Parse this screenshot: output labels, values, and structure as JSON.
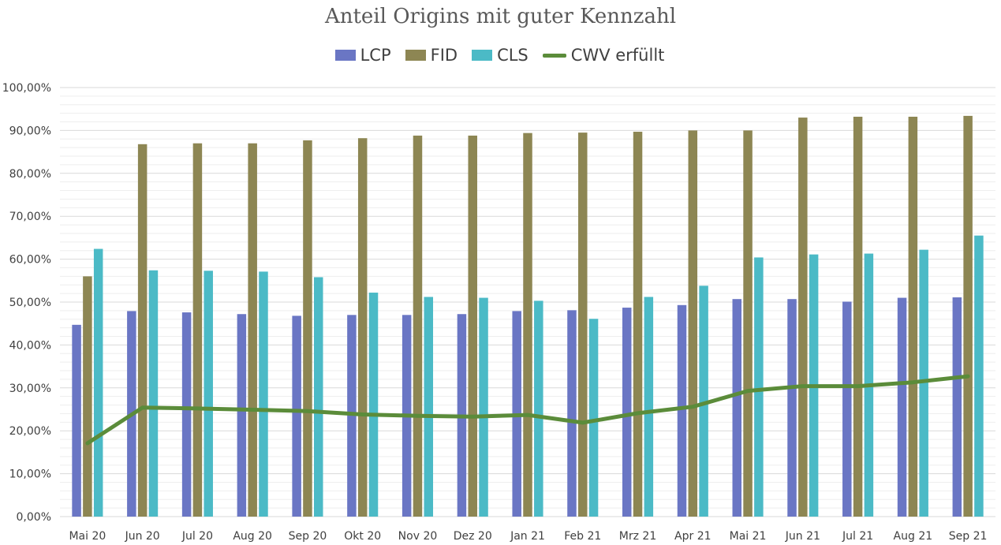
{
  "colors": {
    "LCP": "#6a76c4",
    "FID": "#8d8653",
    "CLS": "#4bbac6",
    "CWV": "#5b8c3a",
    "grid_major": "#d9d9d9",
    "grid_minor": "#eeeeee"
  },
  "chart_data": {
    "type": "bar",
    "title": "Anteil Origins mit guter Kennzahl",
    "xlabel": "",
    "ylabel": "",
    "ylim": [
      0,
      100
    ],
    "y_ticks": [
      "0,00%",
      "10,00%",
      "20,00%",
      "30,00%",
      "40,00%",
      "50,00%",
      "60,00%",
      "70,00%",
      "80,00%",
      "90,00%",
      "100,00%"
    ],
    "grid": true,
    "legend_position": "top",
    "categories": [
      "Mai 20",
      "Jun 20",
      "Jul 20",
      "Aug 20",
      "Sep 20",
      "Okt 20",
      "Nov 20",
      "Dez 20",
      "Jan 21",
      "Feb 21",
      "Mrz 21",
      "Apr 21",
      "Mai 21",
      "Jun 21",
      "Jul 21",
      "Aug 21",
      "Sep 21"
    ],
    "series": [
      {
        "name": "LCP",
        "kind": "bar",
        "values": [
          44.7,
          47.9,
          47.6,
          47.2,
          46.8,
          47.0,
          47.0,
          47.2,
          47.9,
          48.1,
          48.7,
          49.3,
          50.7,
          50.7,
          50.1,
          51.0,
          51.1
        ]
      },
      {
        "name": "FID",
        "kind": "bar",
        "values": [
          56.0,
          86.8,
          87.0,
          87.0,
          87.7,
          88.2,
          88.8,
          88.8,
          89.4,
          89.5,
          89.7,
          90.0,
          90.0,
          93.0,
          93.2,
          93.2,
          93.4
        ]
      },
      {
        "name": "CLS",
        "kind": "bar",
        "values": [
          62.4,
          57.4,
          57.3,
          57.1,
          55.8,
          52.2,
          51.2,
          51.0,
          50.3,
          46.1,
          51.2,
          53.8,
          60.4,
          61.1,
          61.3,
          62.2,
          65.5
        ]
      },
      {
        "name": "CWV erfüllt",
        "kind": "line",
        "values": [
          17.1,
          25.4,
          25.2,
          24.9,
          24.6,
          23.8,
          23.5,
          23.3,
          23.7,
          21.9,
          24.1,
          25.6,
          29.3,
          30.4,
          30.4,
          31.3,
          32.7
        ]
      }
    ]
  }
}
